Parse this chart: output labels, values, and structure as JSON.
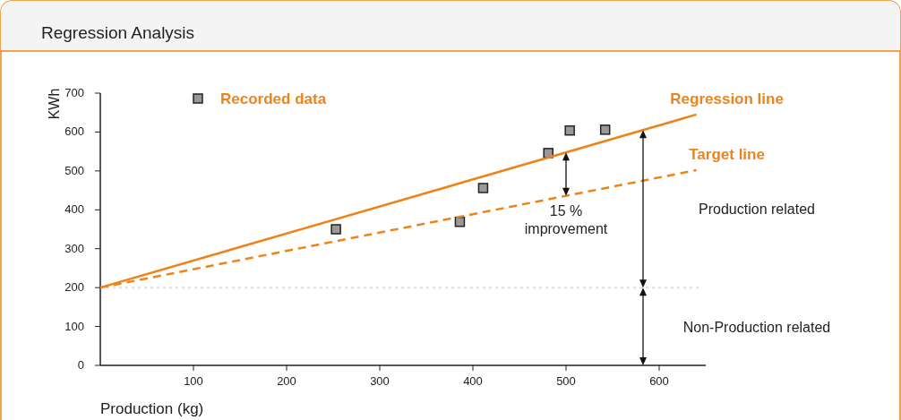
{
  "chart_data": {
    "type": "scatter",
    "title": "Regression Analysis",
    "xlabel": "Production (kg)",
    "ylabel": "KWh",
    "xlim": [
      0,
      650
    ],
    "ylim": [
      0,
      700
    ],
    "xticks": [
      100,
      200,
      300,
      400,
      500,
      600
    ],
    "yticks": [
      0,
      100,
      200,
      300,
      400,
      500,
      600,
      700
    ],
    "grid": false,
    "legend": "top left",
    "series": [
      {
        "name": "Recorded data",
        "marker": "square",
        "color": "#999999",
        "x": [
          253,
          386,
          411,
          481,
          504,
          542
        ],
        "values": [
          350,
          369,
          456,
          546,
          604,
          606
        ]
      },
      {
        "name": "Regression line",
        "type": "line",
        "line_style": "solid",
        "color": "#ee8419",
        "x": [
          0,
          640
        ],
        "values": [
          200,
          645
        ]
      },
      {
        "name": "Target line",
        "type": "line",
        "line_style": "dashed",
        "color": "#ee8419",
        "x": [
          0,
          640
        ],
        "values": [
          200,
          502
        ]
      }
    ],
    "ref_lines": [
      {
        "axis": "y",
        "value": 200,
        "color": "#dddddd",
        "line_style": "dotted"
      }
    ],
    "annotations": [
      {
        "text": "15 %\nimprovement",
        "x": 500,
        "y": 436
      },
      "Production related",
      "Non-Production related"
    ]
  }
}
